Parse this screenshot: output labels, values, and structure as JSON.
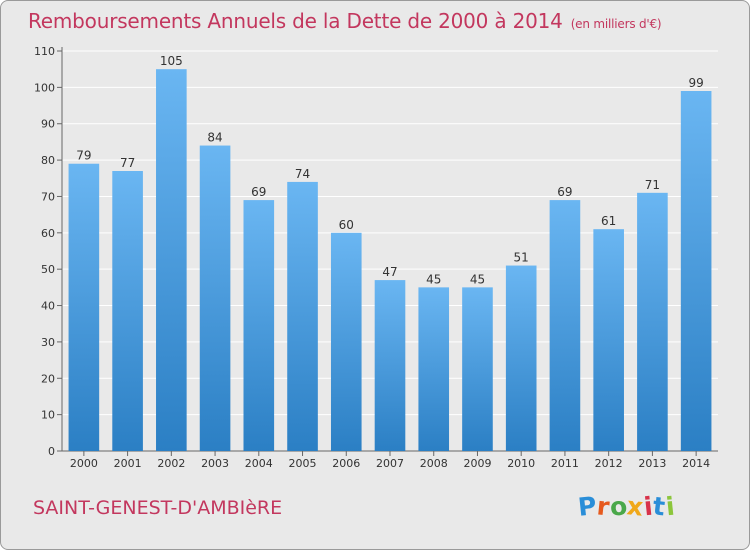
{
  "header": {
    "title": "Remboursements Annuels de la Dette de 2000 à 2014",
    "subtitle": "(en milliers d'€)"
  },
  "footer": {
    "location": "SAINT-GENEST-D'AMBIèRE",
    "logo_text": "Proxiti",
    "logo_letters": [
      "P",
      "r",
      "o",
      "x",
      "i",
      "t",
      "i"
    ],
    "logo_colors": [
      "#2a8ed8",
      "#e65a1e",
      "#4aa84a",
      "#f0a81a",
      "#d8324a",
      "#2a8ed8",
      "#8cc63c"
    ]
  },
  "colors": {
    "bar_top": "#6ab6f2",
    "bar_bottom": "#2b7fc4",
    "accent": "#c3375e",
    "plot_background": "#e9e9e9",
    "grid": "#ffffff"
  },
  "chart_data": {
    "type": "bar",
    "categories": [
      "2000",
      "2001",
      "2002",
      "2003",
      "2004",
      "2005",
      "2006",
      "2007",
      "2008",
      "2009",
      "2010",
      "2011",
      "2012",
      "2013",
      "2014"
    ],
    "values": [
      79,
      77,
      105,
      84,
      69,
      74,
      60,
      47,
      45,
      45,
      51,
      69,
      61,
      71,
      99
    ],
    "title": "Remboursements Annuels de la Dette de 2000 à 2014",
    "subtitle": "(en milliers d'€)",
    "xlabel": "",
    "ylabel": "",
    "ylim": [
      0,
      110
    ],
    "yticks": [
      0,
      10,
      20,
      30,
      40,
      50,
      60,
      70,
      80,
      90,
      100,
      110
    ],
    "grid": true,
    "data_labels": true
  }
}
